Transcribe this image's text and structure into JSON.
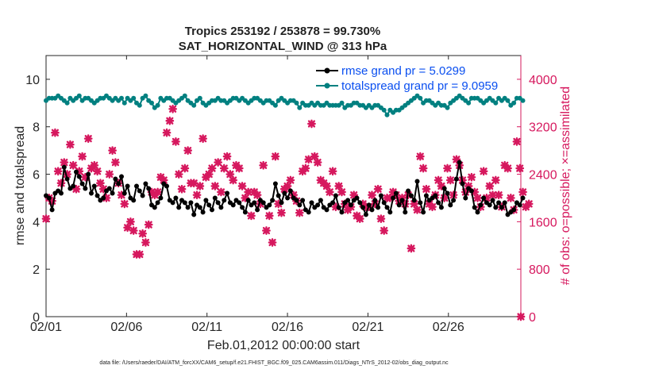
{
  "chart_data": {
    "type": "line",
    "title_line1": "Tropics 253192 / 253878 = 99.730%",
    "title_line2": "SAT_HORIZONTAL_WIND @ 313 hPa",
    "xlabel": "Feb.01,2012 00:00:00 start",
    "ylabel_left": "rmse and totalspread",
    "ylabel_right": "# of obs: o=possible; ×=assimilated",
    "footnote": "data file: /Users/raeder/DAI/ATM_forcXX/CAM6_setup/f.e21.FHIST_BGC.f09_025.CAM6assim.011/Diags_NTrS_2012-02/obs_diag_output.nc",
    "xlim": [
      0,
      29.5
    ],
    "x_tick_values": [
      0,
      5,
      10,
      15,
      20,
      25
    ],
    "x_tick_labels": [
      "02/01",
      "02/06",
      "02/11",
      "02/16",
      "02/21",
      "02/26"
    ],
    "ylim_left": [
      0,
      11
    ],
    "y_ticks_left": [
      "0",
      "2",
      "4",
      "6",
      "8",
      "10"
    ],
    "ylim_right": [
      0,
      4400
    ],
    "y_ticks_right": [
      "0",
      "800",
      "1600",
      "2400",
      "3200",
      "4000"
    ],
    "colors": {
      "rmse": "#000000",
      "spread": "#008080",
      "obs": "#d6185e",
      "legend_text": "#0a4ff0",
      "axis_right": "#d6185e"
    },
    "legend": [
      {
        "name": "rmse grand pr = 5.0299",
        "color": "#000000"
      },
      {
        "name": "totalspread grand pr = 9.0959",
        "color": "#008080"
      }
    ],
    "series": [
      {
        "name": "rmse",
        "axis": "left",
        "values": [
          5.1,
          5.0,
          4.5,
          5.2,
          5.3,
          5.2,
          6.3,
          5.8,
          5.4,
          5.5,
          6.1,
          5.9,
          5.6,
          5.4,
          6.0,
          5.2,
          5.5,
          5.1,
          4.9,
          5.0,
          5.3,
          5.4,
          5.2,
          5.8,
          5.6,
          5.9,
          5.2,
          5.5,
          5.0,
          4.9,
          5.5,
          5.3,
          5.1,
          5.6,
          5.4,
          4.7,
          4.6,
          4.8,
          5.0,
          5.6,
          5.5,
          4.9,
          4.8,
          5.0,
          4.6,
          4.9,
          4.8,
          4.6,
          4.8,
          4.3,
          4.7,
          4.6,
          4.4,
          4.9,
          4.7,
          4.5,
          5.0,
          4.8,
          4.6,
          4.9,
          5.2,
          4.8,
          4.7,
          4.9,
          4.8,
          4.6,
          4.4,
          4.9,
          4.7,
          4.8,
          4.5,
          4.9,
          4.8,
          4.6,
          4.7,
          4.9,
          5.6,
          5.1,
          4.8,
          5.2,
          5.0,
          5.3,
          5.0,
          4.9,
          4.7,
          4.9,
          4.5,
          4.4,
          4.8,
          4.6,
          4.7,
          4.9,
          4.6,
          4.5,
          4.7,
          4.8,
          5.1,
          4.6,
          4.4,
          4.8,
          4.9,
          4.7,
          4.9,
          5.0,
          4.8,
          4.6,
          4.3,
          4.7,
          4.5,
          4.9,
          4.6,
          5.1,
          4.8,
          4.6,
          4.4,
          5.0,
          5.2,
          4.7,
          4.9,
          4.4,
          5.3,
          5.1,
          4.9,
          5.7,
          4.8,
          4.4,
          5.1,
          4.9,
          5.0,
          5.1,
          4.8,
          4.6,
          5.4,
          5.2,
          4.7,
          4.9,
          5.8,
          6.5,
          5.6,
          5.0,
          5.4,
          5.3,
          4.6,
          4.4,
          4.7,
          5.0,
          4.8,
          4.7,
          4.9,
          4.6,
          4.8,
          4.6,
          4.8,
          4.3,
          4.4,
          4.5,
          4.8,
          4.7,
          5.0
        ]
      },
      {
        "name": "totalspread",
        "axis": "left",
        "values": [
          9.1,
          9.2,
          9.2,
          9.2,
          9.3,
          9.2,
          9.1,
          9.0,
          9.2,
          9.1,
          9.2,
          9.3,
          9.1,
          9.2,
          9.2,
          9.1,
          9.0,
          9.1,
          9.2,
          9.2,
          9.3,
          9.2,
          9.1,
          9.2,
          9.1,
          9.2,
          9.0,
          9.2,
          9.1,
          9.2,
          9.0,
          8.9,
          9.2,
          9.3,
          9.1,
          9.0,
          8.8,
          8.9,
          9.2,
          9.1,
          9.2,
          9.2,
          9.1,
          9.0,
          9.1,
          9.2,
          9.3,
          9.1,
          9.0,
          8.9,
          9.1,
          9.2,
          9.0,
          8.9,
          9.0,
          9.1,
          9.1,
          9.2,
          9.1,
          9.1,
          9.0,
          9.1,
          9.2,
          9.2,
          9.1,
          9.2,
          9.1,
          9.0,
          9.1,
          9.2,
          9.2,
          9.1,
          9.0,
          9.1,
          9.1,
          9.0,
          8.9,
          9.1,
          9.2,
          9.1,
          9.0,
          9.1,
          9.1,
          9.0,
          8.8,
          9.0,
          8.9,
          8.9,
          9.0,
          8.9,
          9.0,
          8.9,
          8.9,
          9.0,
          8.9,
          8.9,
          8.9,
          8.9,
          9.0,
          8.8,
          8.9,
          8.9,
          9.0,
          9.0,
          8.9,
          8.9,
          8.8,
          8.9,
          8.8,
          8.9,
          8.9,
          8.8,
          8.7,
          8.5,
          8.7,
          8.6,
          8.7,
          8.7,
          8.8,
          8.9,
          9.0,
          9.1,
          9.2,
          9.3,
          9.2,
          9.0,
          9.1,
          9.1,
          9.0,
          8.9,
          9.0,
          8.9,
          8.9,
          8.8,
          9.0,
          9.1,
          9.2,
          9.3,
          9.2,
          9.1,
          9.0,
          9.2,
          9.2,
          9.2,
          9.1,
          9.0,
          9.1,
          9.2,
          9.1,
          9.0,
          9.2,
          9.1,
          9.2,
          9.1,
          8.9,
          9.0,
          9.2,
          9.2,
          9.1
        ]
      },
      {
        "name": "obs_assimilated",
        "axis": "right",
        "values": [
          1650,
          2000,
          1950,
          3100,
          2450,
          2250,
          2600,
          2400,
          2900,
          2550,
          2150,
          2450,
          2700,
          2350,
          3000,
          2500,
          2550,
          2450,
          2250,
          2150,
          2000,
          2400,
          2800,
          2600,
          2250,
          2050,
          1900,
          1500,
          1600,
          1450,
          1050,
          1050,
          1400,
          1250,
          1550,
          2100,
          2050,
          2100,
          2350,
          2300,
          3100,
          3300,
          3500,
          2950,
          2400,
          2150,
          2500,
          2800,
          2250,
          2250,
          2050,
          2200,
          3000,
          2350,
          2400,
          2500,
          2200,
          2600,
          2100,
          2500,
          2700,
          2400,
          2300,
          2550,
          2500,
          2200,
          2000,
          2100,
          1700,
          2100,
          2050,
          1900,
          2550,
          1450,
          1700,
          1250,
          2700,
          1900,
          1750,
          2150,
          2200,
          2300,
          2050,
          1950,
          1750,
          2450,
          2500,
          2650,
          3250,
          2700,
          2600,
          2300,
          2250,
          2200,
          2100,
          2450,
          1850,
          2200,
          2100,
          1900,
          1800,
          1850,
          2050,
          1700,
          1650,
          1900,
          1850,
          1850,
          2050,
          1900,
          2150,
          1650,
          1450,
          2000,
          2000,
          2100,
          2050,
          1950,
          2000,
          1900,
          2050,
          1150,
          1900,
          1800,
          2700,
          2500,
          2150,
          1900,
          1850,
          2050,
          2300,
          2200,
          2000,
          2500,
          2300,
          2050,
          2650,
          2550,
          2300,
          2100,
          2200,
          2350,
          2100,
          2000,
          1850,
          2450,
          2000,
          2200,
          2050,
          2300,
          2050,
          1850,
          2550,
          2500,
          2000,
          1800,
          2950,
          2500,
          2100,
          1850,
          1900
        ]
      }
    ],
    "x_step": 0.1875,
    "obs_extra_points": [
      {
        "x": 29.5,
        "y": 0
      }
    ]
  }
}
